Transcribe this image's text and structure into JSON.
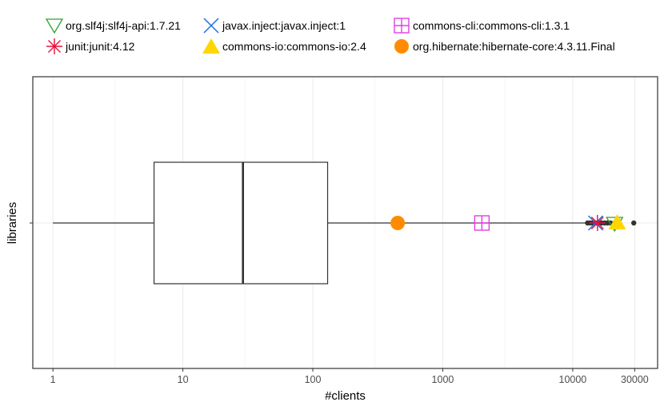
{
  "chart_data": {
    "type": "boxplot",
    "xlabel": "#clients",
    "ylabel": "libraries",
    "x_scale": "log10",
    "xlim": [
      0.7,
      45000
    ],
    "x_ticks": [
      1,
      10,
      100,
      1000,
      10000,
      30000
    ],
    "x_tick_labels": [
      "1",
      "10",
      "100",
      "1000",
      "10000",
      "30000"
    ],
    "grid": true,
    "legend_position": "top",
    "box": {
      "category": "",
      "whisker_low": 1,
      "q1": 6,
      "median": 29,
      "q3": 130,
      "whisker_high": 13000,
      "outliers": [
        13000,
        13600,
        14200,
        15000,
        15800,
        16700,
        17600,
        18500,
        19500,
        21000,
        29500
      ]
    },
    "libraries": [
      {
        "name": "org.slf4j:slf4j-api:1.7.21",
        "clients": 21000,
        "marker": "triangle-down-open",
        "color": "#2ca02c"
      },
      {
        "name": "javax.inject:javax.inject:1",
        "clients": 15000,
        "marker": "x",
        "color": "#1f6fe0"
      },
      {
        "name": "commons-cli:commons-cli:1.3.1",
        "clients": 2000,
        "marker": "square-plus",
        "color": "#e040e0"
      },
      {
        "name": "junit:junit:4.12",
        "clients": 15500,
        "marker": "asterisk",
        "color": "#e8113c"
      },
      {
        "name": "commons-io:commons-io:2.4",
        "clients": 22000,
        "marker": "triangle-up-filled",
        "color": "#ffd600"
      },
      {
        "name": "org.hibernate:hibernate-core:4.3.11.Final",
        "clients": 450,
        "marker": "circle-filled",
        "color": "#ff8c00"
      }
    ]
  }
}
